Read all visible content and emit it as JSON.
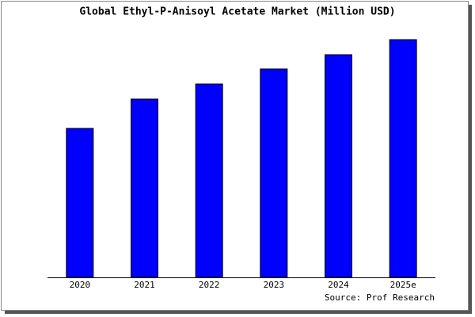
{
  "chart_data": {
    "type": "bar",
    "title": "Global Ethyl-P-Anisoyl Acetate Market (Million USD)",
    "categories": [
      "2020",
      "2021",
      "2022",
      "2023",
      "2024",
      "2025e"
    ],
    "values": [
      188,
      225,
      244,
      263,
      281,
      300
    ],
    "color": "#0000ff",
    "ylim": [
      0,
      302
    ],
    "source": "Source: Prof Research"
  }
}
